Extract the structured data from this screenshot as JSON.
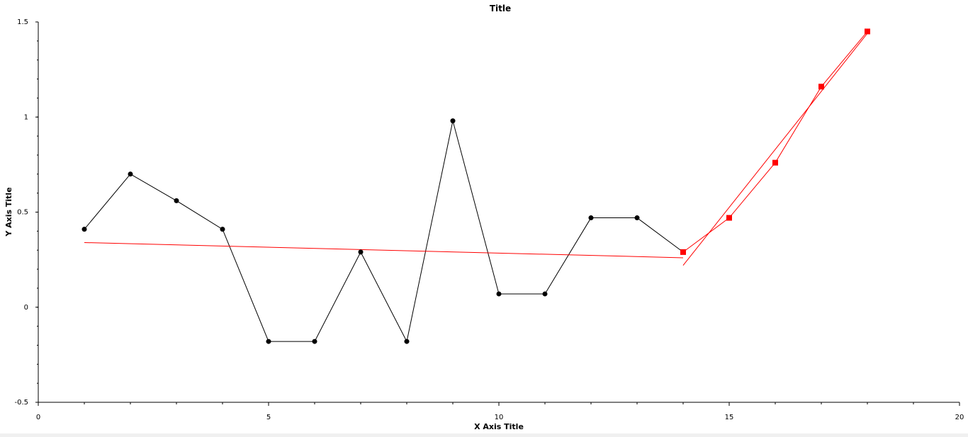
{
  "chart_data": {
    "type": "line",
    "title": "Title",
    "xlabel": "X Axis Title",
    "ylabel": "Y Axis Title",
    "xlim": [
      0,
      20
    ],
    "ylim": [
      -0.5,
      1.5
    ],
    "xticks": [
      0,
      5,
      10,
      15,
      20
    ],
    "xtick_labels": [
      "0",
      "5",
      "10",
      "15",
      "20"
    ],
    "yticks": [
      -0.5,
      0,
      0.5,
      1,
      1.5
    ],
    "ytick_labels": [
      "-0.5",
      "0",
      "0.5",
      "1",
      "1.5"
    ],
    "grid": false,
    "legend": "none",
    "series": [
      {
        "color": "#000000",
        "marker": "circle",
        "x": [
          1,
          2,
          3,
          4,
          5,
          6,
          7,
          8,
          9,
          10,
          11,
          12,
          13,
          14
        ],
        "y": [
          0.41,
          0.7,
          0.56,
          0.41,
          -0.18,
          -0.18,
          0.29,
          -0.18,
          0.98,
          0.07,
          0.07,
          0.47,
          0.47,
          0.29
        ]
      },
      {
        "color": "#ff0000",
        "marker": "square",
        "x": [
          14,
          15,
          16,
          17,
          18
        ],
        "y": [
          0.29,
          0.47,
          0.76,
          1.16,
          1.45
        ]
      },
      {
        "color": "#ff0000",
        "marker": "none",
        "x": [
          1,
          14
        ],
        "y": [
          0.34,
          0.26
        ]
      },
      {
        "color": "#ff0000",
        "marker": "none",
        "x": [
          14,
          18
        ],
        "y": [
          0.22,
          1.44
        ]
      }
    ]
  }
}
